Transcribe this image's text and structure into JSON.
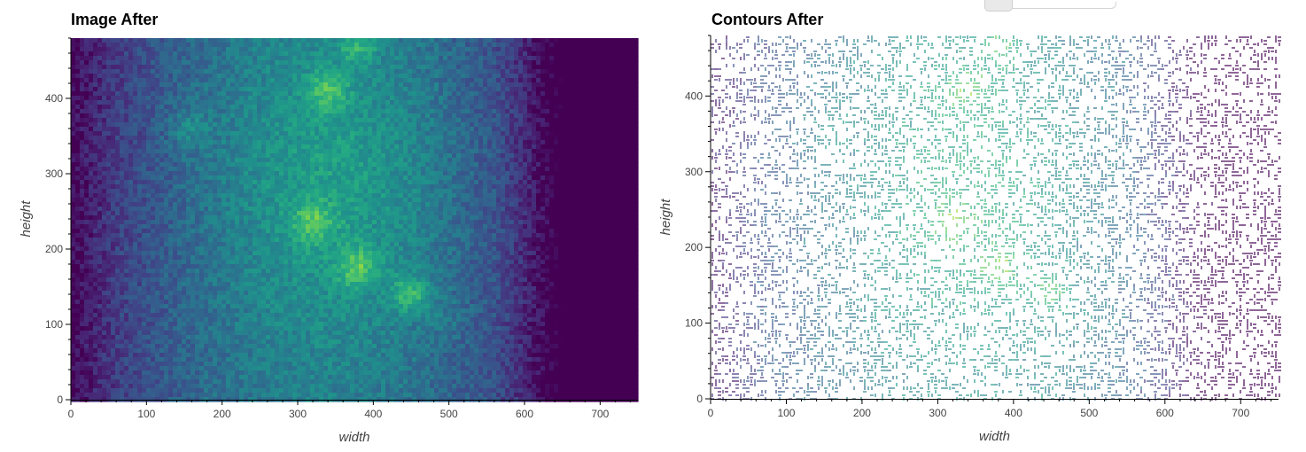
{
  "slider": {
    "name": "contour-level-slider"
  },
  "charts": {
    "image_after": {
      "title": "Image After"
    },
    "contours_after": {
      "title": "Contours After"
    }
  },
  "chart_data": [
    {
      "type": "heatmap",
      "title": "Image After",
      "xlabel": "width",
      "ylabel": "height",
      "xlim": [
        0,
        750
      ],
      "ylim": [
        0,
        480
      ],
      "xticks": [
        0,
        100,
        200,
        300,
        400,
        500,
        600,
        700
      ],
      "yticks": [
        0,
        100,
        200,
        300,
        400
      ],
      "colormap": "viridis",
      "features": [
        {
          "x": 340,
          "y": 410,
          "intensity": 0.9
        },
        {
          "x": 380,
          "y": 470,
          "intensity": 0.85
        },
        {
          "x": 320,
          "y": 235,
          "intensity": 0.9
        },
        {
          "x": 380,
          "y": 175,
          "intensity": 0.95
        },
        {
          "x": 450,
          "y": 140,
          "intensity": 0.95
        },
        {
          "x": 155,
          "y": 360,
          "intensity": 0.75
        },
        {
          "x": 500,
          "y": 110,
          "intensity": 0.6
        }
      ]
    },
    {
      "type": "contour",
      "title": "Contours After",
      "xlabel": "width",
      "ylabel": "height",
      "xlim": [
        0,
        750
      ],
      "ylim": [
        0,
        480
      ],
      "xticks": [
        0,
        100,
        200,
        300,
        400,
        500,
        600,
        700
      ],
      "yticks": [
        0,
        100,
        200,
        300,
        400
      ],
      "colormap": "viridis"
    }
  ]
}
